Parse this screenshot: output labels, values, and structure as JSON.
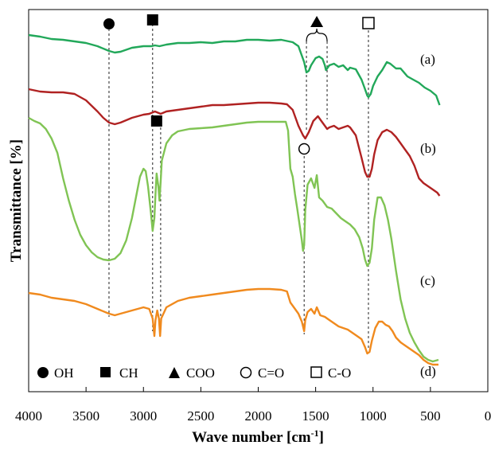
{
  "chart_data": {
    "type": "line",
    "title": "",
    "xlabel": "Wave number [cm",
    "xlabel_sup": "-1",
    "xlabel_close": "]",
    "ylabel": "Transmittance [%]",
    "xlim": [
      4000,
      0
    ],
    "x_reversed": true,
    "x_ticks": [
      4000,
      3500,
      3000,
      2500,
      2000,
      1500,
      1000,
      500,
      0
    ],
    "x_tick_labels": [
      "4000",
      "3500",
      "3000",
      "2500",
      "2000",
      "1500",
      "1000",
      "500",
      "0"
    ],
    "y_ticks_shown": false,
    "grid": false,
    "series": [
      {
        "name": "(a)",
        "color": "#22a85a",
        "points": [
          [
            4000,
            32
          ],
          [
            3900,
            34
          ],
          [
            3800,
            37
          ],
          [
            3700,
            38
          ],
          [
            3600,
            40
          ],
          [
            3500,
            42
          ],
          [
            3400,
            46
          ],
          [
            3300,
            52
          ],
          [
            3250,
            54
          ],
          [
            3200,
            53
          ],
          [
            3100,
            48
          ],
          [
            3000,
            46
          ],
          [
            2930,
            46
          ],
          [
            2900,
            45
          ],
          [
            2860,
            46
          ],
          [
            2800,
            44
          ],
          [
            2700,
            42
          ],
          [
            2600,
            42
          ],
          [
            2500,
            41
          ],
          [
            2400,
            42
          ],
          [
            2300,
            40
          ],
          [
            2200,
            40
          ],
          [
            2100,
            38
          ],
          [
            2000,
            38
          ],
          [
            1900,
            39
          ],
          [
            1800,
            38
          ],
          [
            1700,
            41
          ],
          [
            1650,
            46
          ],
          [
            1600,
            66
          ],
          [
            1580,
            79
          ],
          [
            1560,
            77
          ],
          [
            1540,
            70
          ],
          [
            1500,
            61
          ],
          [
            1470,
            59
          ],
          [
            1440,
            62
          ],
          [
            1420,
            70
          ],
          [
            1410,
            76
          ],
          [
            1380,
            70
          ],
          [
            1340,
            68
          ],
          [
            1300,
            72
          ],
          [
            1260,
            70
          ],
          [
            1220,
            76
          ],
          [
            1200,
            73
          ],
          [
            1150,
            75
          ],
          [
            1100,
            88
          ],
          [
            1070,
            100
          ],
          [
            1050,
            108
          ],
          [
            1040,
            110
          ],
          [
            1020,
            106
          ],
          [
            1000,
            96
          ],
          [
            960,
            84
          ],
          [
            920,
            76
          ],
          [
            880,
            66
          ],
          [
            850,
            68
          ],
          [
            800,
            74
          ],
          [
            760,
            74
          ],
          [
            700,
            84
          ],
          [
            650,
            88
          ],
          [
            600,
            92
          ],
          [
            550,
            98
          ],
          [
            500,
            102
          ],
          [
            450,
            108
          ],
          [
            420,
            120
          ]
        ]
      },
      {
        "name": "(b)",
        "color": "#b02222",
        "points": [
          [
            4000,
            100
          ],
          [
            3900,
            103
          ],
          [
            3800,
            104
          ],
          [
            3700,
            104
          ],
          [
            3600,
            106
          ],
          [
            3500,
            114
          ],
          [
            3400,
            128
          ],
          [
            3350,
            136
          ],
          [
            3300,
            142
          ],
          [
            3250,
            144
          ],
          [
            3200,
            142
          ],
          [
            3100,
            136
          ],
          [
            3000,
            132
          ],
          [
            2950,
            131
          ],
          [
            2900,
            128
          ],
          [
            2850,
            131
          ],
          [
            2800,
            128
          ],
          [
            2700,
            126
          ],
          [
            2600,
            124
          ],
          [
            2500,
            122
          ],
          [
            2400,
            120
          ],
          [
            2300,
            120
          ],
          [
            2200,
            119
          ],
          [
            2100,
            118
          ],
          [
            2000,
            117
          ],
          [
            1900,
            117
          ],
          [
            1800,
            118
          ],
          [
            1750,
            119
          ],
          [
            1700,
            126
          ],
          [
            1650,
            146
          ],
          [
            1610,
            158
          ],
          [
            1590,
            162
          ],
          [
            1560,
            154
          ],
          [
            1520,
            140
          ],
          [
            1480,
            134
          ],
          [
            1450,
            140
          ],
          [
            1420,
            146
          ],
          [
            1400,
            150
          ],
          [
            1380,
            148
          ],
          [
            1340,
            146
          ],
          [
            1300,
            150
          ],
          [
            1260,
            148
          ],
          [
            1220,
            146
          ],
          [
            1200,
            148
          ],
          [
            1150,
            158
          ],
          [
            1100,
            186
          ],
          [
            1070,
            204
          ],
          [
            1050,
            210
          ],
          [
            1030,
            210
          ],
          [
            1010,
            200
          ],
          [
            990,
            182
          ],
          [
            960,
            164
          ],
          [
            920,
            154
          ],
          [
            880,
            151
          ],
          [
            840,
            154
          ],
          [
            800,
            160
          ],
          [
            760,
            168
          ],
          [
            720,
            176
          ],
          [
            680,
            184
          ],
          [
            640,
            196
          ],
          [
            600,
            212
          ],
          [
            560,
            218
          ],
          [
            520,
            222
          ],
          [
            480,
            226
          ],
          [
            440,
            230
          ],
          [
            420,
            234
          ]
        ]
      },
      {
        "name": "(c)",
        "color": "#80c454",
        "points": [
          [
            4000,
            136
          ],
          [
            3950,
            140
          ],
          [
            3900,
            143
          ],
          [
            3850,
            150
          ],
          [
            3800,
            162
          ],
          [
            3750,
            180
          ],
          [
            3700,
            212
          ],
          [
            3650,
            240
          ],
          [
            3600,
            264
          ],
          [
            3550,
            283
          ],
          [
            3500,
            296
          ],
          [
            3450,
            305
          ],
          [
            3400,
            311
          ],
          [
            3350,
            314
          ],
          [
            3300,
            315
          ],
          [
            3250,
            313
          ],
          [
            3200,
            306
          ],
          [
            3150,
            290
          ],
          [
            3100,
            262
          ],
          [
            3060,
            232
          ],
          [
            3030,
            210
          ],
          [
            3000,
            200
          ],
          [
            2980,
            203
          ],
          [
            2960,
            222
          ],
          [
            2935,
            255
          ],
          [
            2920,
            278
          ],
          [
            2905,
            262
          ],
          [
            2895,
            232
          ],
          [
            2885,
            206
          ],
          [
            2870,
            222
          ],
          [
            2860,
            240
          ],
          [
            2850,
            216
          ],
          [
            2840,
            190
          ],
          [
            2800,
            168
          ],
          [
            2750,
            158
          ],
          [
            2700,
            153
          ],
          [
            2600,
            150
          ],
          [
            2500,
            149
          ],
          [
            2400,
            148
          ],
          [
            2300,
            146
          ],
          [
            2200,
            144
          ],
          [
            2100,
            142
          ],
          [
            2000,
            141
          ],
          [
            1900,
            141
          ],
          [
            1800,
            141
          ],
          [
            1760,
            141
          ],
          [
            1740,
            152
          ],
          [
            1720,
            200
          ],
          [
            1700,
            210
          ],
          [
            1680,
            232
          ],
          [
            1660,
            250
          ],
          [
            1640,
            270
          ],
          [
            1620,
            290
          ],
          [
            1610,
            303
          ],
          [
            1600,
            296
          ],
          [
            1590,
            252
          ],
          [
            1570,
            220
          ],
          [
            1540,
            212
          ],
          [
            1510,
            224
          ],
          [
            1490,
            208
          ],
          [
            1470,
            236
          ],
          [
            1440,
            240
          ],
          [
            1400,
            248
          ],
          [
            1360,
            250
          ],
          [
            1320,
            256
          ],
          [
            1280,
            262
          ],
          [
            1240,
            266
          ],
          [
            1200,
            270
          ],
          [
            1160,
            276
          ],
          [
            1120,
            286
          ],
          [
            1090,
            300
          ],
          [
            1070,
            314
          ],
          [
            1050,
            322
          ],
          [
            1030,
            318
          ],
          [
            1010,
            300
          ],
          [
            990,
            264
          ],
          [
            960,
            236
          ],
          [
            930,
            236
          ],
          [
            900,
            246
          ],
          [
            870,
            264
          ],
          [
            840,
            288
          ],
          [
            800,
            328
          ],
          [
            760,
            364
          ],
          [
            720,
            388
          ],
          [
            680,
            406
          ],
          [
            640,
            418
          ],
          [
            600,
            428
          ],
          [
            560,
            436
          ],
          [
            520,
            440
          ],
          [
            480,
            442
          ],
          [
            430,
            440
          ]
        ]
      },
      {
        "name": "(d)",
        "color": "#f08a1e",
        "points": [
          [
            4000,
            356
          ],
          [
            3900,
            358
          ],
          [
            3800,
            362
          ],
          [
            3700,
            364
          ],
          [
            3600,
            366
          ],
          [
            3500,
            370
          ],
          [
            3400,
            376
          ],
          [
            3300,
            382
          ],
          [
            3250,
            384
          ],
          [
            3200,
            382
          ],
          [
            3100,
            378
          ],
          [
            3000,
            374
          ],
          [
            2950,
            376
          ],
          [
            2920,
            388
          ],
          [
            2905,
            410
          ],
          [
            2895,
            390
          ],
          [
            2880,
            378
          ],
          [
            2865,
            388
          ],
          [
            2855,
            410
          ],
          [
            2845,
            388
          ],
          [
            2800,
            374
          ],
          [
            2700,
            366
          ],
          [
            2600,
            362
          ],
          [
            2500,
            360
          ],
          [
            2400,
            358
          ],
          [
            2300,
            356
          ],
          [
            2200,
            354
          ],
          [
            2100,
            352
          ],
          [
            2000,
            351
          ],
          [
            1900,
            351
          ],
          [
            1800,
            352
          ],
          [
            1750,
            354
          ],
          [
            1720,
            368
          ],
          [
            1700,
            372
          ],
          [
            1680,
            376
          ],
          [
            1650,
            382
          ],
          [
            1620,
            392
          ],
          [
            1600,
            404
          ],
          [
            1590,
            390
          ],
          [
            1570,
            380
          ],
          [
            1540,
            376
          ],
          [
            1510,
            382
          ],
          [
            1490,
            374
          ],
          [
            1460,
            384
          ],
          [
            1420,
            386
          ],
          [
            1380,
            390
          ],
          [
            1340,
            394
          ],
          [
            1300,
            398
          ],
          [
            1260,
            400
          ],
          [
            1220,
            402
          ],
          [
            1180,
            406
          ],
          [
            1140,
            410
          ],
          [
            1100,
            414
          ],
          [
            1070,
            424
          ],
          [
            1050,
            432
          ],
          [
            1030,
            430
          ],
          [
            1010,
            416
          ],
          [
            980,
            400
          ],
          [
            950,
            392
          ],
          [
            920,
            392
          ],
          [
            890,
            396
          ],
          [
            860,
            398
          ],
          [
            830,
            404
          ],
          [
            800,
            412
          ],
          [
            760,
            418
          ],
          [
            720,
            422
          ],
          [
            680,
            426
          ],
          [
            640,
            430
          ],
          [
            600,
            434
          ],
          [
            560,
            440
          ],
          [
            520,
            444
          ],
          [
            480,
            446
          ],
          [
            430,
            446
          ]
        ]
      }
    ],
    "curve_labels": [
      "(a)",
      "(b)",
      "(c)",
      "(d)"
    ],
    "reference_lines": [
      {
        "x": 3300,
        "marker": "filled-circle"
      },
      {
        "x": 2920,
        "marker": "filled-square"
      },
      {
        "x": 2850,
        "marker": "filled-square"
      },
      {
        "x": 1580,
        "marker": "filled-triangle"
      },
      {
        "x": 1400,
        "marker": "filled-triangle"
      },
      {
        "x": 1600,
        "marker": "open-circle"
      },
      {
        "x": 1040,
        "marker": "open-square"
      }
    ],
    "legend": {
      "placement": "bottom-left",
      "items": [
        {
          "marker": "filled-circle",
          "label": "OH"
        },
        {
          "marker": "filled-square",
          "label": "CH"
        },
        {
          "marker": "filled-triangle",
          "label": "COO"
        },
        {
          "marker": "open-circle",
          "label": "C=O"
        },
        {
          "marker": "open-square",
          "label": "C-O"
        }
      ]
    }
  }
}
